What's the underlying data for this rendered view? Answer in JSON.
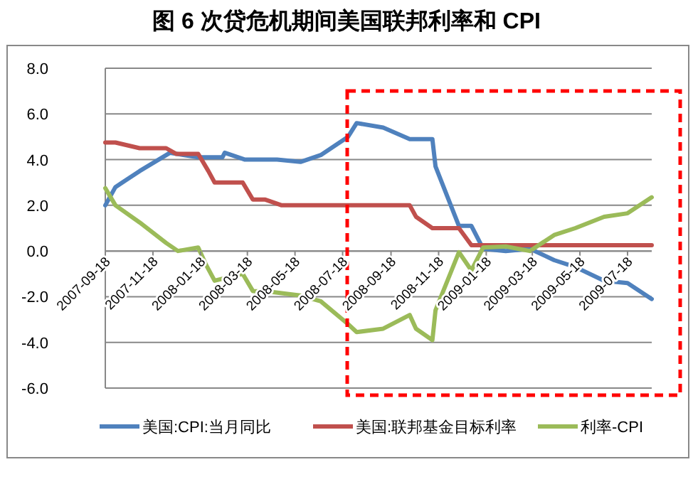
{
  "chart_data": {
    "type": "line",
    "title": "图 6 次贷危机期间美国联邦利率和 CPI",
    "xlim": [
      "2007-09-18",
      "2009-08-18"
    ],
    "xticks": [
      "2007-09-18",
      "2007-11-18",
      "2008-01-18",
      "2008-03-18",
      "2008-05-18",
      "2008-07-18",
      "2008-09-18",
      "2008-11-18",
      "2009-01-18",
      "2009-03-18",
      "2009-05-18",
      "2009-07-18"
    ],
    "ylim": [
      -6,
      8
    ],
    "yticks": [
      {
        "value": -6,
        "label": "-6.0"
      },
      {
        "value": -4,
        "label": "-4.0"
      },
      {
        "value": -2,
        "label": "-2.0"
      },
      {
        "value": 0,
        "label": "0.0"
      },
      {
        "value": 2,
        "label": "2.0"
      },
      {
        "value": 4,
        "label": "4.0"
      },
      {
        "value": 6,
        "label": "6.0"
      },
      {
        "value": 8,
        "label": "8.0"
      }
    ],
    "grid": "y",
    "legend": "bottom",
    "line_style": "solid",
    "marker": "none",
    "series": [
      {
        "name": "美国:CPI:当月同比",
        "color": "#4f81bd",
        "x": [
          "2007-09-18",
          "2007-10-01",
          "2007-11-01",
          "2007-12-10",
          "2008-01-15",
          "2008-02-15",
          "2008-02-18",
          "2008-03-15",
          "2008-04-25",
          "2008-05-25",
          "2008-06-20",
          "2008-07-25",
          "2008-08-05",
          "2008-09-08",
          "2008-10-12",
          "2008-11-10",
          "2008-11-14",
          "2008-12-14",
          "2008-12-30",
          "2009-01-14",
          "2009-02-12",
          "2009-03-15",
          "2009-04-15",
          "2009-05-12",
          "2009-06-18",
          "2009-07-18",
          "2009-08-18"
        ],
        "values": [
          2.0,
          2.8,
          3.5,
          4.3,
          4.1,
          4.1,
          4.3,
          4.0,
          4.0,
          3.9,
          4.2,
          5.0,
          5.6,
          5.4,
          4.9,
          4.9,
          3.7,
          1.1,
          1.1,
          0.1,
          0.0,
          0.1,
          -0.4,
          -0.7,
          -1.3,
          -1.4,
          -2.1
        ]
      },
      {
        "name": "美国:联邦基金目标利率",
        "color": "#c0504d",
        "x": [
          "2007-09-18",
          "2007-10-01",
          "2007-11-01",
          "2007-12-05",
          "2007-12-18",
          "2008-01-15",
          "2008-01-28",
          "2008-02-05",
          "2008-03-12",
          "2008-03-25",
          "2008-04-10",
          "2008-05-01",
          "2008-10-12",
          "2008-10-20",
          "2008-11-10",
          "2008-12-14",
          "2008-12-30",
          "2009-08-18"
        ],
        "values": [
          4.75,
          4.75,
          4.5,
          4.5,
          4.25,
          4.25,
          3.5,
          3.0,
          3.0,
          2.25,
          2.25,
          2.0,
          2.0,
          1.5,
          1.0,
          1.0,
          0.25,
          0.25
        ]
      },
      {
        "name": "利率-CPI",
        "color": "#9bbb59",
        "x": [
          "2007-09-18",
          "2007-10-01",
          "2007-11-01",
          "2007-12-05",
          "2007-12-20",
          "2008-01-15",
          "2008-01-25",
          "2008-02-05",
          "2008-03-12",
          "2008-03-25",
          "2008-04-20",
          "2008-05-25",
          "2008-06-20",
          "2008-07-25",
          "2008-08-05",
          "2008-09-08",
          "2008-10-12",
          "2008-10-20",
          "2008-11-10",
          "2008-11-14",
          "2008-12-14",
          "2008-12-30",
          "2009-01-14",
          "2009-02-12",
          "2009-03-15",
          "2009-04-15",
          "2009-05-12",
          "2009-06-18",
          "2009-07-18",
          "2009-08-18"
        ],
        "values": [
          2.75,
          2.0,
          1.25,
          0.35,
          0.0,
          0.15,
          -0.6,
          -1.3,
          -1.0,
          -1.75,
          -1.8,
          -1.95,
          -2.2,
          -3.2,
          -3.55,
          -3.4,
          -2.8,
          -3.4,
          -3.9,
          -2.6,
          -0.05,
          -0.85,
          0.15,
          0.2,
          0.0,
          0.7,
          1.0,
          1.5,
          1.65,
          2.35
        ]
      }
    ]
  }
}
